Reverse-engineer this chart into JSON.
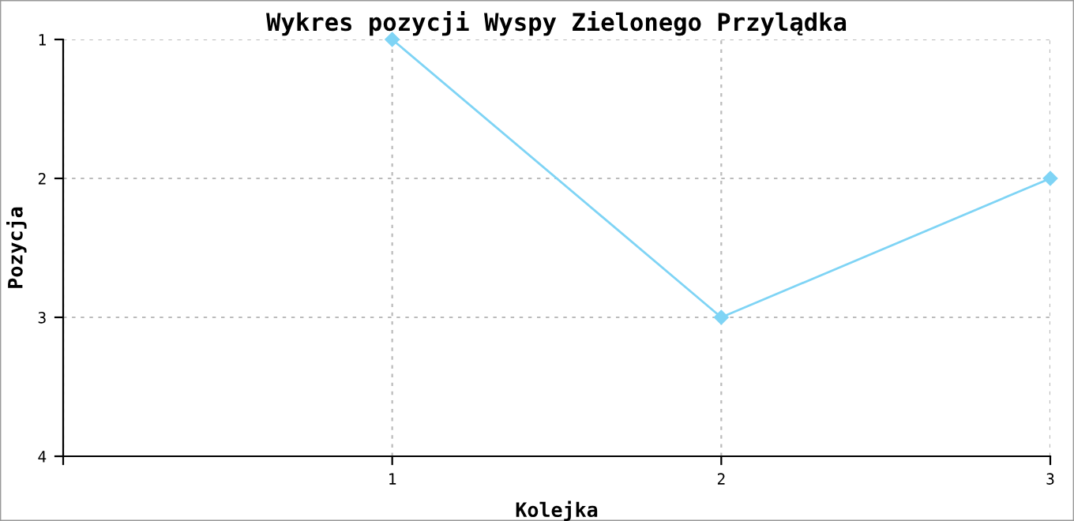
{
  "chart_data": {
    "type": "line",
    "title": "Wykres pozycji Wyspy Zielonego Przylądka",
    "xlabel": "Kolejka",
    "ylabel": "Pozycja",
    "x": [
      1,
      2,
      3
    ],
    "series": [
      {
        "color": "#7fd4f5",
        "values": [
          1,
          3,
          2
        ]
      }
    ],
    "xlim": [
      0,
      3
    ],
    "xticks": [
      {
        "value": 0,
        "label": null
      },
      1,
      2,
      3
    ],
    "ylim": [
      4,
      1
    ],
    "yticks": [
      1,
      2,
      3,
      4
    ],
    "grid": true,
    "marker": "diamond",
    "line_style": "solid"
  }
}
